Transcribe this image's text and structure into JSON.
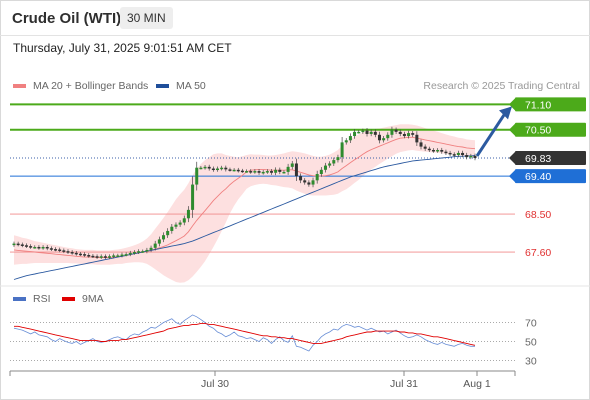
{
  "header": {
    "title": "Crude Oil (WTI)",
    "timeframe": "30 MIN",
    "datetime": "Thursday, July 31, 2025 9:01:51 AM CET"
  },
  "legend_main": [
    {
      "label": "MA 20 + Bollinger Bands",
      "color": "#f08080"
    },
    {
      "label": "MA 50",
      "color": "#1f4e9a"
    }
  ],
  "credit": "Research © 2025 Trading Central",
  "legend_rsi": [
    {
      "label": "RSI",
      "color": "#4a72c4"
    },
    {
      "label": "9MA",
      "color": "#e00000"
    }
  ],
  "chart_data": [
    {
      "type": "candlestick",
      "title": "Crude Oil (WTI)",
      "x_ticks": [
        "Jul 30",
        "Jul 31",
        "Aug 1"
      ],
      "y_ticks": [
        "71.10",
        "70.50",
        "69.83",
        "69.40",
        "68.50",
        "67.60"
      ],
      "ylim": [
        66.7,
        71.3
      ],
      "last_price": 69.83,
      "levels": [
        {
          "value": 71.1,
          "label": "71.10",
          "kind": "resistance",
          "color": "#4caa1a"
        },
        {
          "value": 70.5,
          "label": "70.50",
          "kind": "resistance",
          "color": "#4caa1a"
        },
        {
          "value": 69.83,
          "label": "69.83",
          "kind": "last",
          "color": "#333333"
        },
        {
          "value": 69.4,
          "label": "69.40",
          "kind": "pivot",
          "color": "#1f6fd6"
        },
        {
          "value": 68.5,
          "label": "68.50",
          "kind": "support",
          "color": "#e03030"
        },
        {
          "value": 67.6,
          "label": "67.60",
          "kind": "support",
          "color": "#e03030"
        }
      ],
      "close": [
        67.8,
        67.78,
        67.76,
        67.74,
        67.72,
        67.72,
        67.7,
        67.72,
        67.69,
        67.67,
        67.66,
        67.64,
        67.62,
        67.6,
        67.58,
        67.56,
        67.55,
        67.53,
        67.51,
        67.5,
        67.48,
        67.5,
        67.48,
        67.5,
        67.52,
        67.52,
        67.54,
        67.55,
        67.58,
        67.6,
        67.62,
        67.62,
        67.65,
        67.7,
        67.8,
        67.9,
        68.0,
        68.1,
        68.2,
        68.25,
        68.3,
        68.4,
        68.6,
        69.2,
        69.6,
        69.6,
        69.62,
        69.58,
        69.55,
        69.58,
        69.6,
        69.56,
        69.55,
        69.55,
        69.53,
        69.52,
        69.52,
        69.5,
        69.52,
        69.48,
        69.5,
        69.52,
        69.48,
        69.55,
        69.5,
        69.5,
        69.62,
        69.7,
        69.4,
        69.3,
        69.25,
        69.2,
        69.3,
        69.45,
        69.55,
        69.65,
        69.7,
        69.78,
        69.85,
        70.2,
        70.25,
        70.35,
        70.45,
        70.45,
        70.48,
        70.4,
        70.45,
        70.38,
        70.25,
        70.3,
        70.38,
        70.5,
        70.45,
        70.4,
        70.35,
        70.42,
        70.38,
        70.2,
        70.1,
        70.05,
        70.02,
        70.0,
        70.02,
        69.98,
        69.95,
        69.92,
        69.9,
        69.95,
        69.9,
        69.85,
        69.88,
        69.83
      ],
      "ma20": [
        67.65,
        67.64,
        67.63,
        67.62,
        67.61,
        67.6,
        67.59,
        67.58,
        67.57,
        67.56,
        67.55,
        67.54,
        67.53,
        67.52,
        67.51,
        67.5,
        67.49,
        67.48,
        67.48,
        67.48,
        67.47,
        67.47,
        67.47,
        67.47,
        67.48,
        67.49,
        67.5,
        67.52,
        67.54,
        67.56,
        67.58,
        67.6,
        67.62,
        67.64,
        67.67,
        67.7,
        67.73,
        67.77,
        67.82,
        67.87,
        67.92,
        67.98,
        68.08,
        68.22,
        68.35,
        68.47,
        68.58,
        68.7,
        68.82,
        68.92,
        69.02,
        69.1,
        69.2,
        69.28,
        69.35,
        69.42,
        69.5,
        69.54,
        69.55,
        69.56,
        69.56,
        69.55,
        69.54,
        69.54,
        69.54,
        69.54,
        69.55,
        69.55,
        69.52,
        69.49,
        69.46,
        69.43,
        69.41,
        69.4,
        69.4,
        69.41,
        69.43,
        69.46,
        69.5,
        69.58,
        69.65,
        69.72,
        69.79,
        69.85,
        69.92,
        69.98,
        70.03,
        70.07,
        70.11,
        70.15,
        70.19,
        70.23,
        70.27,
        70.3,
        70.31,
        70.32,
        70.32,
        70.3,
        70.28,
        70.26,
        70.24,
        70.22,
        70.2,
        70.18,
        70.16,
        70.14,
        70.12,
        70.1,
        70.09,
        70.07,
        70.06,
        70.05
      ],
      "ma50": [
        66.95,
        66.98,
        67.01,
        67.04,
        67.06,
        67.08,
        67.1,
        67.12,
        67.14,
        67.16,
        67.18,
        67.2,
        67.22,
        67.24,
        67.26,
        67.28,
        67.3,
        67.32,
        67.34,
        67.36,
        67.38,
        67.4,
        67.42,
        67.44,
        67.46,
        67.48,
        67.5,
        67.52,
        67.54,
        67.56,
        67.58,
        67.6,
        67.62,
        67.64,
        67.66,
        67.68,
        67.7,
        67.72,
        67.74,
        67.76,
        67.78,
        67.8,
        67.83,
        67.86,
        67.9,
        67.94,
        67.98,
        68.02,
        68.06,
        68.1,
        68.14,
        68.18,
        68.22,
        68.26,
        68.3,
        68.34,
        68.38,
        68.42,
        68.46,
        68.5,
        68.54,
        68.58,
        68.62,
        68.66,
        68.7,
        68.74,
        68.78,
        68.82,
        68.86,
        68.9,
        68.94,
        68.98,
        69.02,
        69.06,
        69.1,
        69.14,
        69.18,
        69.22,
        69.26,
        69.3,
        69.34,
        69.38,
        69.41,
        69.44,
        69.47,
        69.5,
        69.53,
        69.56,
        69.59,
        69.62,
        69.64,
        69.66,
        69.68,
        69.7,
        69.72,
        69.74,
        69.76,
        69.77,
        69.78,
        69.79,
        69.8,
        69.81,
        69.82,
        69.83,
        69.84,
        69.85,
        69.86,
        69.87,
        69.87,
        69.88,
        69.88,
        69.89
      ],
      "bb_width": [
        0.35,
        0.33,
        0.31,
        0.3,
        0.28,
        0.26,
        0.25,
        0.24,
        0.23,
        0.22,
        0.21,
        0.2,
        0.19,
        0.18,
        0.18,
        0.17,
        0.17,
        0.17,
        0.17,
        0.17,
        0.17,
        0.17,
        0.17,
        0.17,
        0.17,
        0.17,
        0.18,
        0.18,
        0.19,
        0.2,
        0.22,
        0.25,
        0.3,
        0.38,
        0.48,
        0.58,
        0.68,
        0.78,
        0.88,
        0.98,
        1.05,
        1.1,
        1.15,
        1.2,
        1.22,
        1.22,
        1.2,
        1.15,
        1.1,
        1.02,
        0.92,
        0.8,
        0.68,
        0.58,
        0.5,
        0.45,
        0.4,
        0.38,
        0.36,
        0.35,
        0.34,
        0.34,
        0.35,
        0.36,
        0.38,
        0.4,
        0.42,
        0.44,
        0.46,
        0.47,
        0.48,
        0.48,
        0.47,
        0.46,
        0.46,
        0.47,
        0.48,
        0.5,
        0.52,
        0.54,
        0.56,
        0.56,
        0.55,
        0.54,
        0.52,
        0.5,
        0.47,
        0.45,
        0.42,
        0.4,
        0.38,
        0.36,
        0.34,
        0.33,
        0.32,
        0.31,
        0.3,
        0.3,
        0.29,
        0.28,
        0.27,
        0.26,
        0.25,
        0.24,
        0.23,
        0.22,
        0.22,
        0.21,
        0.21,
        0.2,
        0.2,
        0.2
      ],
      "forecast_arrow": {
        "from": 69.83,
        "to": 71.1
      }
    },
    {
      "type": "line",
      "title": "RSI",
      "y_ticks": [
        70,
        50,
        30
      ],
      "ylim": [
        20,
        80
      ],
      "series": [
        {
          "name": "RSI",
          "values": [
            64,
            63,
            62,
            60,
            58,
            60,
            57,
            56,
            55,
            52,
            50,
            53,
            51,
            49,
            48,
            50,
            47,
            49,
            51,
            53,
            50,
            49,
            50,
            52,
            54,
            55,
            53,
            52,
            56,
            58,
            57,
            60,
            62,
            65,
            64,
            67,
            70,
            72,
            74,
            70,
            68,
            72,
            75,
            78,
            76,
            73,
            70,
            66,
            64,
            60,
            58,
            55,
            57,
            60,
            56,
            55,
            53,
            54,
            52,
            50,
            54,
            52,
            48,
            52,
            55,
            51,
            49,
            56,
            45,
            44,
            42,
            40,
            46,
            50,
            55,
            58,
            60,
            63,
            62,
            66,
            68,
            67,
            65,
            66,
            64,
            62,
            64,
            62,
            60,
            61,
            58,
            60,
            62,
            59,
            56,
            54,
            55,
            57,
            55,
            52,
            50,
            48,
            47,
            49,
            47,
            46,
            45,
            47,
            48,
            46,
            45,
            45
          ]
        },
        {
          "name": "9MA",
          "values": [
            66,
            66,
            65,
            64,
            63,
            62,
            61,
            60,
            59,
            58,
            57,
            56,
            55,
            54,
            53,
            52,
            51,
            51,
            51,
            51,
            51,
            50,
            50,
            51,
            51,
            51,
            52,
            52,
            53,
            54,
            55,
            56,
            57,
            58,
            59,
            60,
            61,
            63,
            64,
            65,
            66,
            67,
            67,
            68,
            68,
            69,
            69,
            68,
            68,
            67,
            66,
            65,
            64,
            63,
            62,
            61,
            60,
            59,
            58,
            57,
            56,
            56,
            55,
            55,
            54,
            54,
            53,
            53,
            52,
            51,
            50,
            49,
            48,
            48,
            48,
            49,
            50,
            51,
            52,
            53,
            55,
            56,
            57,
            58,
            59,
            60,
            60,
            61,
            61,
            61,
            61,
            61,
            61,
            60,
            60,
            59,
            59,
            58,
            58,
            57,
            56,
            55,
            55,
            54,
            53,
            52,
            51,
            50,
            49,
            48,
            47,
            46
          ]
        }
      ]
    }
  ]
}
